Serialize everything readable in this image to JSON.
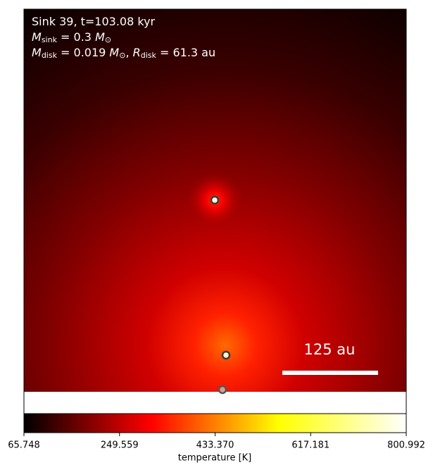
{
  "chart_data": {
    "type": "image",
    "annotation_lines": [
      [
        {
          "text": "Sink 39, t=103.08 kyr"
        }
      ],
      [
        {
          "text": "M",
          "italic": true
        },
        {
          "text": "sink",
          "sub": true
        },
        {
          "text": " = 0.3 "
        },
        {
          "text": "M",
          "italic": true
        },
        {
          "text": "⊙",
          "sub": true
        }
      ],
      [
        {
          "text": "M",
          "italic": true
        },
        {
          "text": "disk",
          "sub": true
        },
        {
          "text": " = 0.019 "
        },
        {
          "text": "M",
          "italic": true
        },
        {
          "text": "⊙",
          "sub": true
        },
        {
          "text": ", "
        },
        {
          "text": "R",
          "italic": true
        },
        {
          "text": "disk",
          "sub": true
        },
        {
          "text": " = 61.3 au"
        }
      ]
    ],
    "scale_bar_label": "125 au",
    "colorbar": {
      "label": "temperature [K]",
      "clim": [
        65.748,
        800.992
      ],
      "ticks": [
        65.748,
        249.559,
        {
          "value": 433.37,
          "label": "433.370"
        },
        617.181,
        800.992
      ],
      "colormap": [
        "#000000",
        "#ff0000",
        "#ffff00",
        "#ffffff"
      ]
    }
  }
}
